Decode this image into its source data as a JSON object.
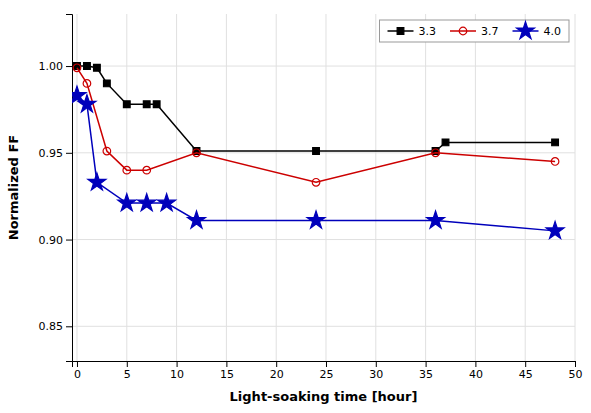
{
  "chart_data": {
    "type": "line",
    "xlabel": "Light-soaking time [hour]",
    "ylabel": "Normalized FF",
    "series": [
      {
        "name": "3.3",
        "color": "#000000",
        "marker": "square",
        "x": [
          0,
          1,
          2,
          3,
          5,
          7,
          8,
          12,
          24,
          36,
          37,
          48
        ],
        "values": [
          1.0,
          1.0,
          0.999,
          0.99,
          0.978,
          0.978,
          0.978,
          0.951,
          0.951,
          0.951,
          0.956,
          0.956
        ]
      },
      {
        "name": "3.7",
        "color": "#cc0000",
        "marker": "circle",
        "x": [
          0,
          1,
          3,
          5,
          7,
          12,
          24,
          36,
          48
        ],
        "values": [
          0.999,
          0.99,
          0.951,
          0.94,
          0.94,
          0.95,
          0.933,
          0.95,
          0.945
        ]
      },
      {
        "name": "4.0",
        "color": "#0000bb",
        "marker": "star",
        "x": [
          0,
          1,
          2,
          5,
          7,
          9,
          12,
          24,
          36,
          48
        ],
        "values": [
          0.983,
          0.978,
          0.933,
          0.921,
          0.921,
          0.921,
          0.911,
          0.911,
          0.911,
          0.905
        ]
      }
    ],
    "xlim": [
      -0.5,
      50
    ],
    "ylim": [
      0.83,
      1.03
    ],
    "xticks": [
      0,
      5,
      10,
      15,
      20,
      25,
      30,
      35,
      40,
      45,
      50
    ],
    "yticks": [
      0.85,
      {
        "value": 0.9,
        "label": "0.90"
      },
      0.95,
      {
        "value": 1,
        "label": "1.00"
      }
    ],
    "grid": true,
    "legend": "upper right"
  }
}
